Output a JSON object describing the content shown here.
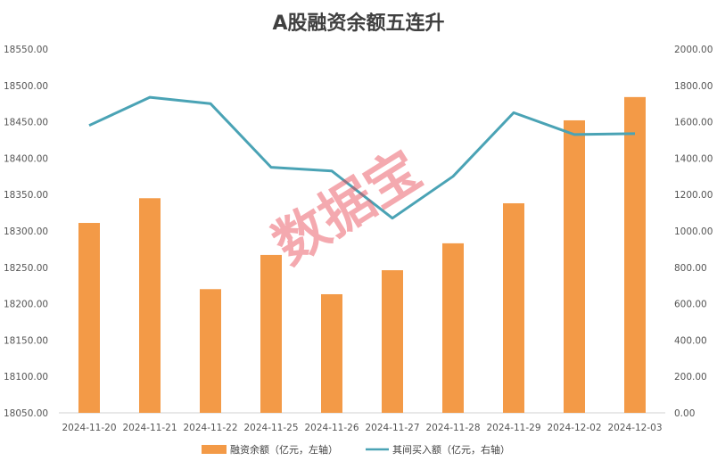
{
  "chart_data": {
    "type": "bar",
    "title": "A股融资余额五连升",
    "categories": [
      "2024-11-20",
      "2024-11-21",
      "2024-11-22",
      "2024-11-25",
      "2024-11-26",
      "2024-11-27",
      "2024-11-28",
      "2024-11-29",
      "2024-12-02",
      "2024-12-03"
    ],
    "series": [
      {
        "name": "融资余额（亿元，左轴）",
        "type": "bar",
        "axis": "left",
        "color": "#f39a47",
        "values": [
          18311,
          18345,
          18220,
          18267,
          18213,
          18246,
          18283,
          18338,
          18452,
          18484
        ]
      },
      {
        "name": "其间买入额（亿元，右轴）",
        "type": "line",
        "axis": "right",
        "color": "#4aa3b5",
        "values": [
          1580,
          1735,
          1700,
          1350,
          1330,
          1070,
          1300,
          1650,
          1530,
          1535
        ]
      }
    ],
    "y_left": {
      "min": 18050,
      "max": 18550,
      "ticks": [
        "18050.00",
        "18100.00",
        "18150.00",
        "18200.00",
        "18250.00",
        "18300.00",
        "18350.00",
        "18400.00",
        "18450.00",
        "18500.00",
        "18550.00"
      ]
    },
    "y_right": {
      "min": 0,
      "max": 2000,
      "ticks": [
        "0.00",
        "200.00",
        "400.00",
        "600.00",
        "800.00",
        "1000.00",
        "1200.00",
        "1400.00",
        "1600.00",
        "1800.00",
        "2000.00"
      ]
    },
    "grid": false,
    "legend": "bottom"
  },
  "watermark": "数据宝"
}
